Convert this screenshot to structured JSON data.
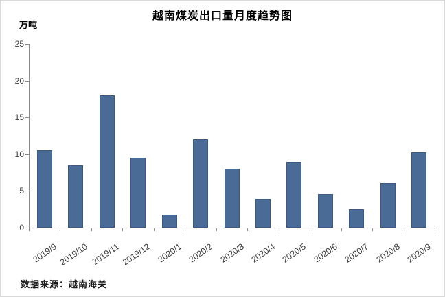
{
  "source_note": "数据来源：越南海关",
  "chart_data": {
    "type": "bar",
    "title": "越南煤炭出口量月度趋势图",
    "ylabel": "万吨",
    "xlabel": "",
    "categories": [
      "2019/9",
      "2019/10",
      "2019/11",
      "2019/12",
      "2020/1",
      "2020/2",
      "2020/3",
      "2020/4",
      "2020/5",
      "2020/6",
      "2020/7",
      "2020/8",
      "2020/9"
    ],
    "values": [
      10.5,
      8.5,
      18,
      9.5,
      1.8,
      12,
      8,
      3.9,
      9,
      4.6,
      2.5,
      6.1,
      10.3
    ],
    "ylim": [
      0,
      25
    ],
    "ytick_interval": 5,
    "yticks": [
      0,
      5,
      10,
      15,
      20,
      25
    ],
    "grid": false,
    "legend_position": "none",
    "bar_color": "#4a6b96",
    "bar_border_color": "#3a5a84",
    "axis_color": "#8c8c8c",
    "tick_label_color": "#3d3d3d"
  }
}
